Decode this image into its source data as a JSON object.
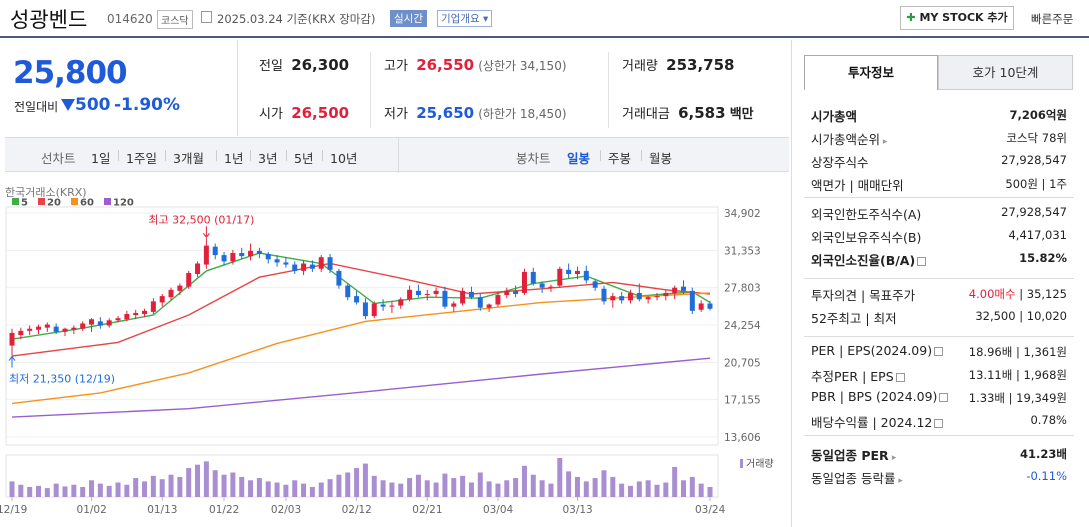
{
  "header": {
    "name": "성광벤드",
    "code": "014620",
    "market": "코스닥",
    "date": "2025.03.24  기준(KRX 장마감)",
    "realtime": "실시간",
    "company_info": "기업개요",
    "mystock": "MY STOCK 추가",
    "quick_order": "빠른주문"
  },
  "quote": {
    "price": "25,800",
    "prev_label": "전일대비",
    "change": "500",
    "change_pct": "-1.90%",
    "prev_close_label": "전일",
    "prev_close": "26,300",
    "open_label": "시가",
    "open": "26,500",
    "high_label": "고가",
    "high": "26,550",
    "upper_limit": "(상한가 34,150)",
    "low_label": "저가",
    "low": "25,650",
    "lower_limit": "(하한가 18,450)",
    "volume_label": "거래량",
    "volume": "253,758",
    "amount_label": "거래대금",
    "amount": "6,583",
    "amount_unit": "백만"
  },
  "periods": {
    "line_label": "선차트",
    "line": [
      "1일",
      "1주일",
      "3개월",
      "1년",
      "3년",
      "5년",
      "10년"
    ],
    "candle_label": "봉차트",
    "candle": [
      "일봉",
      "주봉",
      "월봉"
    ],
    "active": "일봉"
  },
  "panel": {
    "tabs": [
      "투자정보",
      "호가 10단계"
    ],
    "sections": [
      [
        {
          "k": "시가총액",
          "v": "7,206억원",
          "bold": true
        },
        {
          "k": "시가총액순위",
          "v": "코스닥 78위",
          "arrow": true
        },
        {
          "k": "상장주식수",
          "v": "27,928,547"
        },
        {
          "k": "액면가 | 매매단위",
          "v": "500원 | 1주"
        }
      ],
      [
        {
          "k": "외국인한도주식수(A)",
          "v": "27,928,547"
        },
        {
          "k": "외국인보유주식수(B)",
          "v": "4,417,031"
        },
        {
          "k": "외국인소진율(B/A)",
          "v": "15.82%",
          "bold": true,
          "q": true
        }
      ],
      [
        {
          "k": "투자의견 | 목표주가",
          "v_red": "4.00매수",
          "v": " | 35,125"
        },
        {
          "k": "52주최고 | 최저",
          "v": "32,500 | 10,020"
        }
      ],
      [
        {
          "k": "PER | EPS(2024.09)",
          "v": "18.96배 | 1,361원",
          "q": true
        },
        {
          "k": "추정PER | EPS",
          "v": "13.11배 | 1,968원",
          "q": true
        },
        {
          "k": "PBR | BPS (2024.09)",
          "v": "1.33배 | 19,349원",
          "q": true
        },
        {
          "k": "배당수익률 | 2024.12",
          "v": "0.78%",
          "q": true
        }
      ],
      [
        {
          "k": "동일업종 PER",
          "v": "41.23배",
          "bold": true,
          "arrow": true
        },
        {
          "k": "동일업종 등락률",
          "v": "-0.11%",
          "blue": true,
          "arrow": true
        }
      ]
    ]
  },
  "chart_data": {
    "type": "candlestick",
    "source": "한국거래소(KRX)",
    "legend": [
      {
        "name": "5",
        "color": "#3fae49"
      },
      {
        "name": "20",
        "color": "#e64545"
      },
      {
        "name": "60",
        "color": "#f5921e"
      },
      {
        "name": "120",
        "color": "#9a5fce"
      }
    ],
    "y_ticks": [
      "34,902",
      "31,353",
      "27,803",
      "24,254",
      "20,705",
      "17,155",
      "13,606"
    ],
    "ylim": [
      13606,
      34902
    ],
    "x_ticks": [
      "12/19",
      "01/02",
      "01/13",
      "01/22",
      "02/03",
      "02/12",
      "02/21",
      "03/04",
      "03/13",
      "03/24"
    ],
    "high_note": "최고 32,500 (01/17)",
    "low_note": "최저 21,350 (12/19)",
    "volume_label": "거래량",
    "candles": [
      [
        22300,
        23900,
        21350,
        23500
      ],
      [
        23300,
        24000,
        22900,
        23700
      ],
      [
        23700,
        24200,
        23300,
        23900
      ],
      [
        23800,
        24300,
        23400,
        24100
      ],
      [
        24000,
        24500,
        23600,
        24300
      ],
      [
        24100,
        24400,
        23400,
        23600
      ],
      [
        23600,
        24000,
        23200,
        23900
      ],
      [
        23800,
        24200,
        23400,
        24000
      ],
      [
        23900,
        24600,
        23700,
        24400
      ],
      [
        24300,
        24900,
        23600,
        24800
      ],
      [
        24600,
        25000,
        23900,
        24200
      ],
      [
        24200,
        24900,
        24000,
        24700
      ],
      [
        24700,
        25100,
        24500,
        24900
      ],
      [
        24800,
        25600,
        24600,
        25300
      ],
      [
        25200,
        25700,
        24800,
        25400
      ],
      [
        25300,
        25800,
        25000,
        25600
      ],
      [
        25500,
        26800,
        25300,
        26500
      ],
      [
        26400,
        27200,
        26000,
        27000
      ],
      [
        26900,
        27800,
        26600,
        27600
      ],
      [
        27500,
        28200,
        27100,
        28000
      ],
      [
        27900,
        29400,
        27700,
        29200
      ],
      [
        29100,
        30300,
        28800,
        30100
      ],
      [
        30000,
        32500,
        29600,
        31800
      ],
      [
        31700,
        32000,
        30500,
        30900
      ],
      [
        30900,
        31200,
        29900,
        30300
      ],
      [
        30300,
        31400,
        30000,
        31100
      ],
      [
        31100,
        31600,
        30500,
        30800
      ],
      [
        30800,
        32000,
        30400,
        31300
      ],
      [
        31300,
        31600,
        30600,
        31000
      ],
      [
        31000,
        31200,
        30100,
        30500
      ],
      [
        30500,
        30900,
        29800,
        30200
      ],
      [
        30200,
        30700,
        29700,
        30000
      ],
      [
        30000,
        30300,
        29100,
        29400
      ],
      [
        29400,
        30400,
        29000,
        30100
      ],
      [
        30000,
        30400,
        29300,
        29600
      ],
      [
        29600,
        30900,
        29300,
        30700
      ],
      [
        30700,
        31000,
        29200,
        29500
      ],
      [
        29400,
        29600,
        27700,
        28000
      ],
      [
        28000,
        28200,
        26600,
        26900
      ],
      [
        27000,
        27500,
        26200,
        26400
      ],
      [
        26400,
        26800,
        24800,
        25100
      ],
      [
        25100,
        26500,
        24900,
        26300
      ],
      [
        26200,
        26700,
        25600,
        26000
      ],
      [
        26000,
        26500,
        25400,
        26100
      ],
      [
        26100,
        26900,
        25800,
        26700
      ],
      [
        26700,
        28000,
        26500,
        27600
      ],
      [
        27500,
        28100,
        26900,
        27100
      ],
      [
        27100,
        27600,
        26600,
        27200
      ],
      [
        27200,
        27800,
        26900,
        27500
      ],
      [
        27500,
        27900,
        25800,
        26000
      ],
      [
        26000,
        26500,
        25500,
        26300
      ],
      [
        26300,
        27800,
        26100,
        27500
      ],
      [
        27400,
        27900,
        26700,
        26900
      ],
      [
        26900,
        27200,
        25600,
        25900
      ],
      [
        25900,
        26300,
        25500,
        26200
      ],
      [
        26200,
        27400,
        26000,
        27100
      ],
      [
        27100,
        27800,
        26800,
        27500
      ],
      [
        27500,
        28000,
        26900,
        27200
      ],
      [
        27300,
        29600,
        27100,
        29300
      ],
      [
        29300,
        29700,
        28000,
        28200
      ],
      [
        28200,
        28400,
        27300,
        27800
      ],
      [
        27800,
        28100,
        27400,
        27900
      ],
      [
        28000,
        29800,
        27800,
        29600
      ],
      [
        29500,
        30100,
        28700,
        29100
      ],
      [
        29100,
        29800,
        28600,
        29400
      ],
      [
        29400,
        29900,
        28200,
        28500
      ],
      [
        28400,
        28600,
        27500,
        27800
      ],
      [
        27700,
        28000,
        26200,
        26500
      ],
      [
        26600,
        27300,
        25900,
        27000
      ],
      [
        27000,
        27400,
        26300,
        26600
      ],
      [
        26600,
        27600,
        26300,
        27300
      ],
      [
        27300,
        28200,
        26500,
        26700
      ],
      [
        26700,
        27000,
        26300,
        26900
      ],
      [
        26900,
        27300,
        26600,
        27000
      ],
      [
        27000,
        27600,
        26600,
        27300
      ],
      [
        27300,
        28000,
        26700,
        27800
      ],
      [
        27900,
        28500,
        27200,
        27500
      ],
      [
        27500,
        27800,
        25300,
        25600
      ],
      [
        25700,
        26600,
        25500,
        26300
      ],
      [
        26300,
        26550,
        25650,
        25800
      ]
    ],
    "ma_levels": {
      "ma5": [
        [
          0,
          22900
        ],
        [
          8,
          23950
        ],
        [
          16,
          25200
        ],
        [
          22,
          29400
        ],
        [
          28,
          31100
        ],
        [
          35,
          30100
        ],
        [
          41,
          26300
        ],
        [
          47,
          26900
        ],
        [
          53,
          26800
        ],
        [
          59,
          28200
        ],
        [
          65,
          28900
        ],
        [
          71,
          27000
        ],
        [
          77,
          27400
        ],
        [
          79,
          26400
        ]
      ],
      "ma20": [
        [
          0,
          21300
        ],
        [
          12,
          22600
        ],
        [
          20,
          25200
        ],
        [
          28,
          28800
        ],
        [
          36,
          30100
        ],
        [
          44,
          28700
        ],
        [
          52,
          27200
        ],
        [
          60,
          27700
        ],
        [
          68,
          28300
        ],
        [
          74,
          27600
        ],
        [
          79,
          27200
        ]
      ],
      "ma60": [
        [
          0,
          16800
        ],
        [
          10,
          17800
        ],
        [
          20,
          19700
        ],
        [
          30,
          22500
        ],
        [
          40,
          24600
        ],
        [
          50,
          25500
        ],
        [
          60,
          26400
        ],
        [
          70,
          26900
        ],
        [
          79,
          27300
        ]
      ],
      "ma120": [
        [
          0,
          15500
        ],
        [
          20,
          16300
        ],
        [
          40,
          17900
        ],
        [
          60,
          19600
        ],
        [
          79,
          21100
        ]
      ]
    },
    "volume": [
      28,
      22,
      18,
      20,
      16,
      24,
      19,
      22,
      18,
      30,
      24,
      20,
      26,
      22,
      34,
      28,
      38,
      32,
      40,
      36,
      52,
      58,
      64,
      48,
      40,
      44,
      36,
      30,
      34,
      28,
      26,
      22,
      30,
      24,
      18,
      26,
      32,
      40,
      44,
      52,
      60,
      38,
      30,
      26,
      24,
      34,
      40,
      30,
      26,
      42,
      34,
      38,
      26,
      44,
      28,
      24,
      30,
      34,
      56,
      40,
      30,
      24,
      70,
      46,
      36,
      28,
      34,
      48,
      36,
      24,
      20,
      28,
      30,
      22,
      26,
      54,
      30,
      36,
      24,
      18
    ]
  }
}
